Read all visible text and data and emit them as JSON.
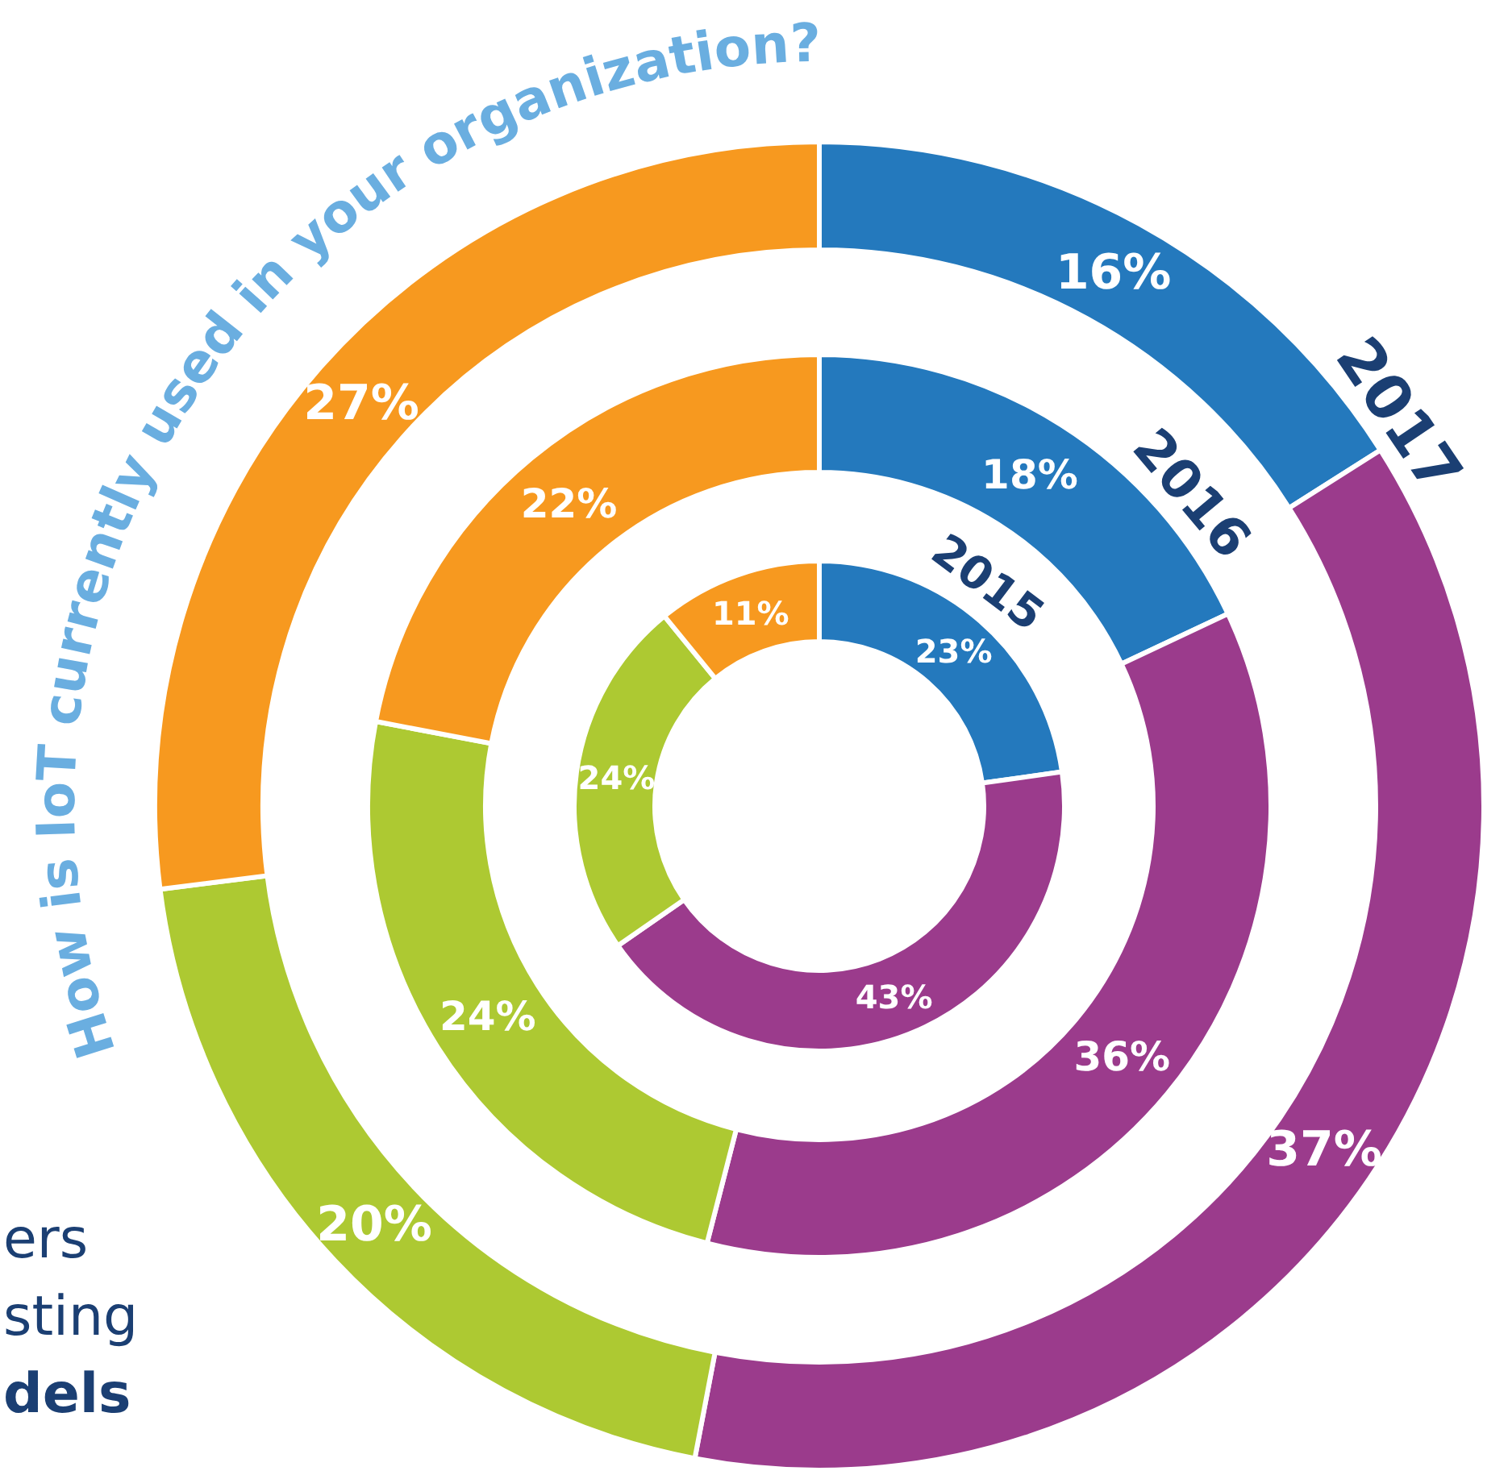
{
  "chart_data": {
    "type": "donut",
    "title": "How is IoT currently used in your organization?",
    "categories": [
      null,
      null,
      null,
      null
    ],
    "colors": [
      "#2479bd",
      "#9b3b8c",
      "#adc932",
      "#f7991f"
    ],
    "series": [
      {
        "name": "2015",
        "values": [
          23,
          43,
          24,
          11
        ],
        "value_labels": [
          "23%",
          "43%",
          "24%",
          "11%"
        ]
      },
      {
        "name": "2016",
        "values": [
          18,
          36,
          24,
          22
        ],
        "value_labels": [
          "18%",
          "36%",
          "24%",
          "22%"
        ]
      },
      {
        "name": "2017",
        "values": [
          16,
          37,
          20,
          27
        ],
        "value_labels": [
          "16%",
          "37%",
          "20%",
          "27%"
        ]
      }
    ],
    "annotations": [
      "ers",
      "sting",
      "dels"
    ]
  }
}
